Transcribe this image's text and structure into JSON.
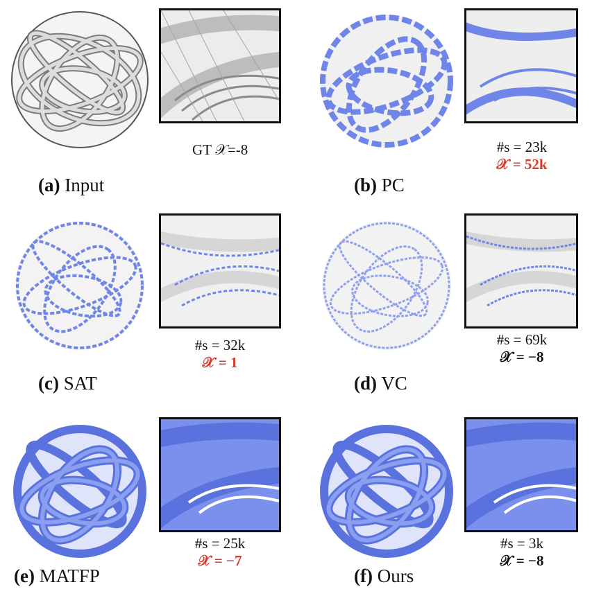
{
  "colors": {
    "wire": "#8c8c8c",
    "blue": "#6f86e8",
    "blue_dark": "#4d63d0",
    "red": "#d83a2e",
    "gray": "#d9d9d9"
  },
  "panels": {
    "a": {
      "letter": "(a)",
      "name": "Input",
      "gt": "GT 𝒳=-8"
    },
    "b": {
      "letter": "(b)",
      "name": "PC",
      "s": "#s = 23k",
      "chi": "𝒳 = 52k"
    },
    "c": {
      "letter": "(c)",
      "name": "SAT",
      "s": "#s = 32k",
      "chi": "𝒳 = 1"
    },
    "d": {
      "letter": "(d)",
      "name": "VC",
      "s": "#s = 69k",
      "chi": "𝒳 = −8"
    },
    "e": {
      "letter": "(e)",
      "name": "MATFP",
      "s": "#s = 25k",
      "chi": "𝒳 = −7"
    },
    "f": {
      "letter": "(f)",
      "name": "Ours",
      "s": "#s = 3k",
      "chi": "𝒳 = −8"
    }
  }
}
